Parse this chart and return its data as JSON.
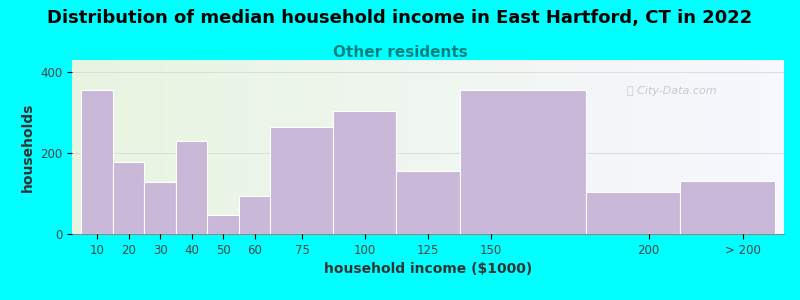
{
  "title": "Distribution of median household income in East Hartford, CT in 2022",
  "subtitle": "Other residents",
  "xlabel": "household income ($1000)",
  "ylabel": "households",
  "background_color": "#00ffff",
  "bar_color": "#c9b8d8",
  "bar_edgecolor": "#ffffff",
  "categories": [
    "10",
    "20",
    "30",
    "40",
    "50",
    "60",
    "75",
    "100",
    "125",
    "150",
    "200",
    "> 200"
  ],
  "bar_heights": [
    355,
    178,
    128,
    230,
    47,
    95,
    265,
    305,
    155,
    355,
    105,
    130
  ],
  "bar_lefts": [
    0,
    1,
    2,
    3,
    4,
    5,
    6,
    8,
    10,
    12,
    16,
    19
  ],
  "bar_widths": [
    1,
    1,
    1,
    1,
    1,
    1,
    2,
    2,
    2,
    4,
    3,
    3
  ],
  "xtick_pos": [
    0.5,
    1.5,
    2.5,
    3.5,
    4.5,
    5.5,
    7,
    9,
    11,
    13,
    18,
    21
  ],
  "xtick_labels": [
    "10",
    "20",
    "30",
    "40",
    "50",
    "60",
    "75",
    "100",
    "125",
    "150",
    "200",
    "> 200"
  ],
  "ylim": [
    0,
    430
  ],
  "yticks": [
    0,
    200,
    400
  ],
  "title_fontsize": 13,
  "subtitle_fontsize": 11,
  "subtitle_color": "#008080",
  "axis_label_fontsize": 10,
  "tick_fontsize": 8.5,
  "watermark": "City-Data.com"
}
